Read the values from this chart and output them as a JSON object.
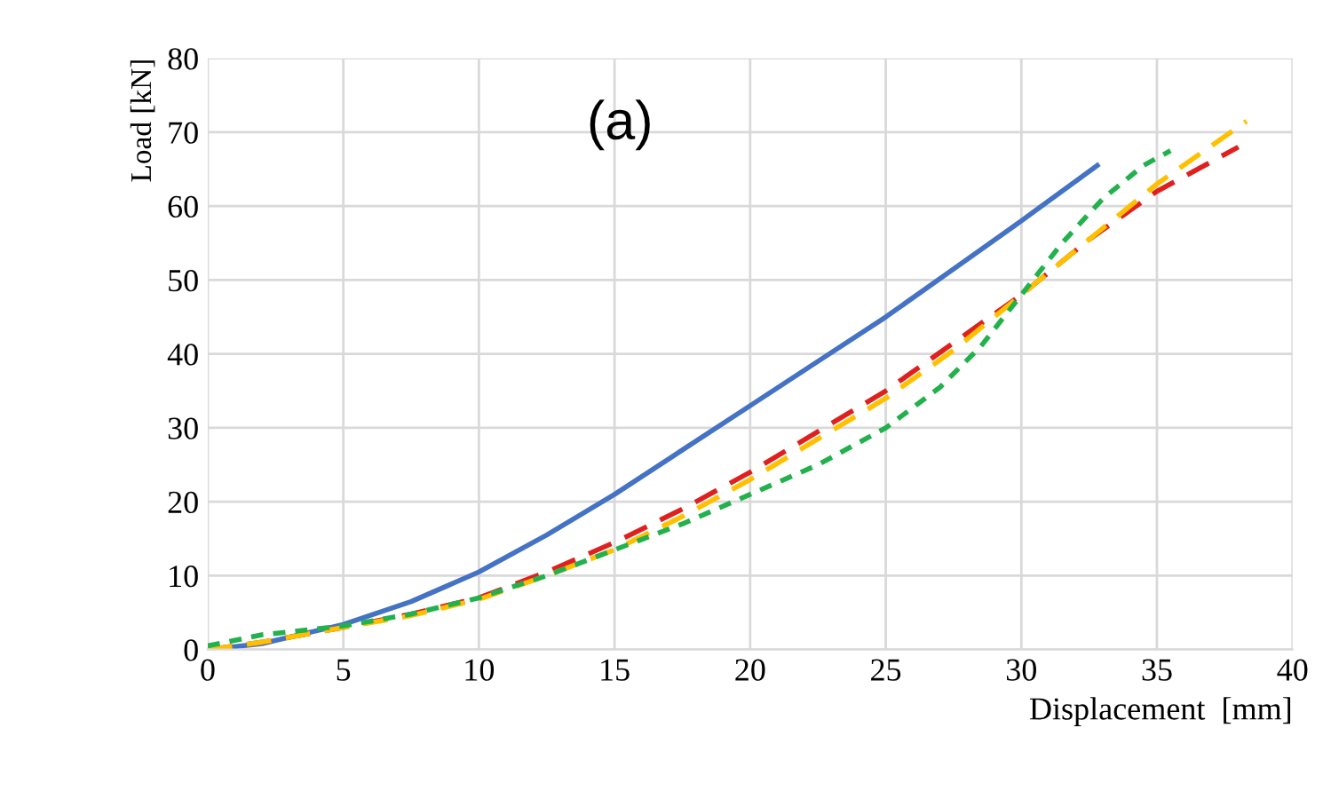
{
  "chart_data": {
    "type": "line",
    "xlabel": "Displacement  [mm]",
    "ylabel": "Load [kN]",
    "annotations": [
      "(a)"
    ],
    "xlim": [
      0,
      40
    ],
    "ylim": [
      0,
      80
    ],
    "xticks": [
      0,
      5,
      10,
      15,
      20,
      25,
      30,
      35,
      40
    ],
    "yticks": [
      0,
      10,
      20,
      30,
      40,
      50,
      60,
      70,
      80
    ],
    "grid": true,
    "marker": "none",
    "series": [
      {
        "color": "#4472c4",
        "line_style": "solid",
        "x": [
          0,
          2,
          5,
          7.5,
          10,
          12.5,
          15,
          17.5,
          20,
          22.5,
          25,
          27.5,
          30,
          32.8
        ],
        "values": [
          0,
          0.8,
          3.4,
          6.5,
          10.5,
          15.5,
          21,
          27,
          33,
          39,
          45,
          51.5,
          58,
          65.5
        ]
      },
      {
        "color": "#e0201e",
        "line_style": "dashed",
        "x": [
          0,
          2,
          5,
          7.5,
          10,
          12.5,
          15,
          17.5,
          20,
          22.5,
          25,
          27.5,
          30,
          32.5,
          35,
          38
        ],
        "values": [
          0,
          1,
          3,
          4.8,
          7,
          10.5,
          14.5,
          19,
          24,
          29.5,
          35,
          41.5,
          48,
          55.5,
          62,
          68
        ]
      },
      {
        "color": "#ffc000",
        "line_style": "dashed",
        "x": [
          0,
          2,
          5,
          7.5,
          10,
          12.5,
          15,
          17.5,
          20,
          22.5,
          25,
          27.5,
          30,
          32.5,
          35,
          38.3
        ],
        "values": [
          0,
          1,
          3,
          4.6,
          6.8,
          10,
          13.5,
          18,
          23,
          28.5,
          34,
          40.5,
          48,
          55.5,
          63,
          71.5
        ]
      },
      {
        "color": "#22b14c",
        "line_style": "dotted",
        "x": [
          0,
          2,
          5,
          7.5,
          10,
          12.5,
          15,
          17.5,
          20,
          22.5,
          25,
          27,
          28.5,
          30,
          31.5,
          33,
          34.5,
          35.5
        ],
        "values": [
          0.5,
          2,
          3.2,
          4.8,
          7,
          10,
          13.5,
          17,
          21,
          25,
          30,
          35.5,
          41,
          48,
          55,
          61,
          65.5,
          67.5
        ]
      }
    ]
  }
}
